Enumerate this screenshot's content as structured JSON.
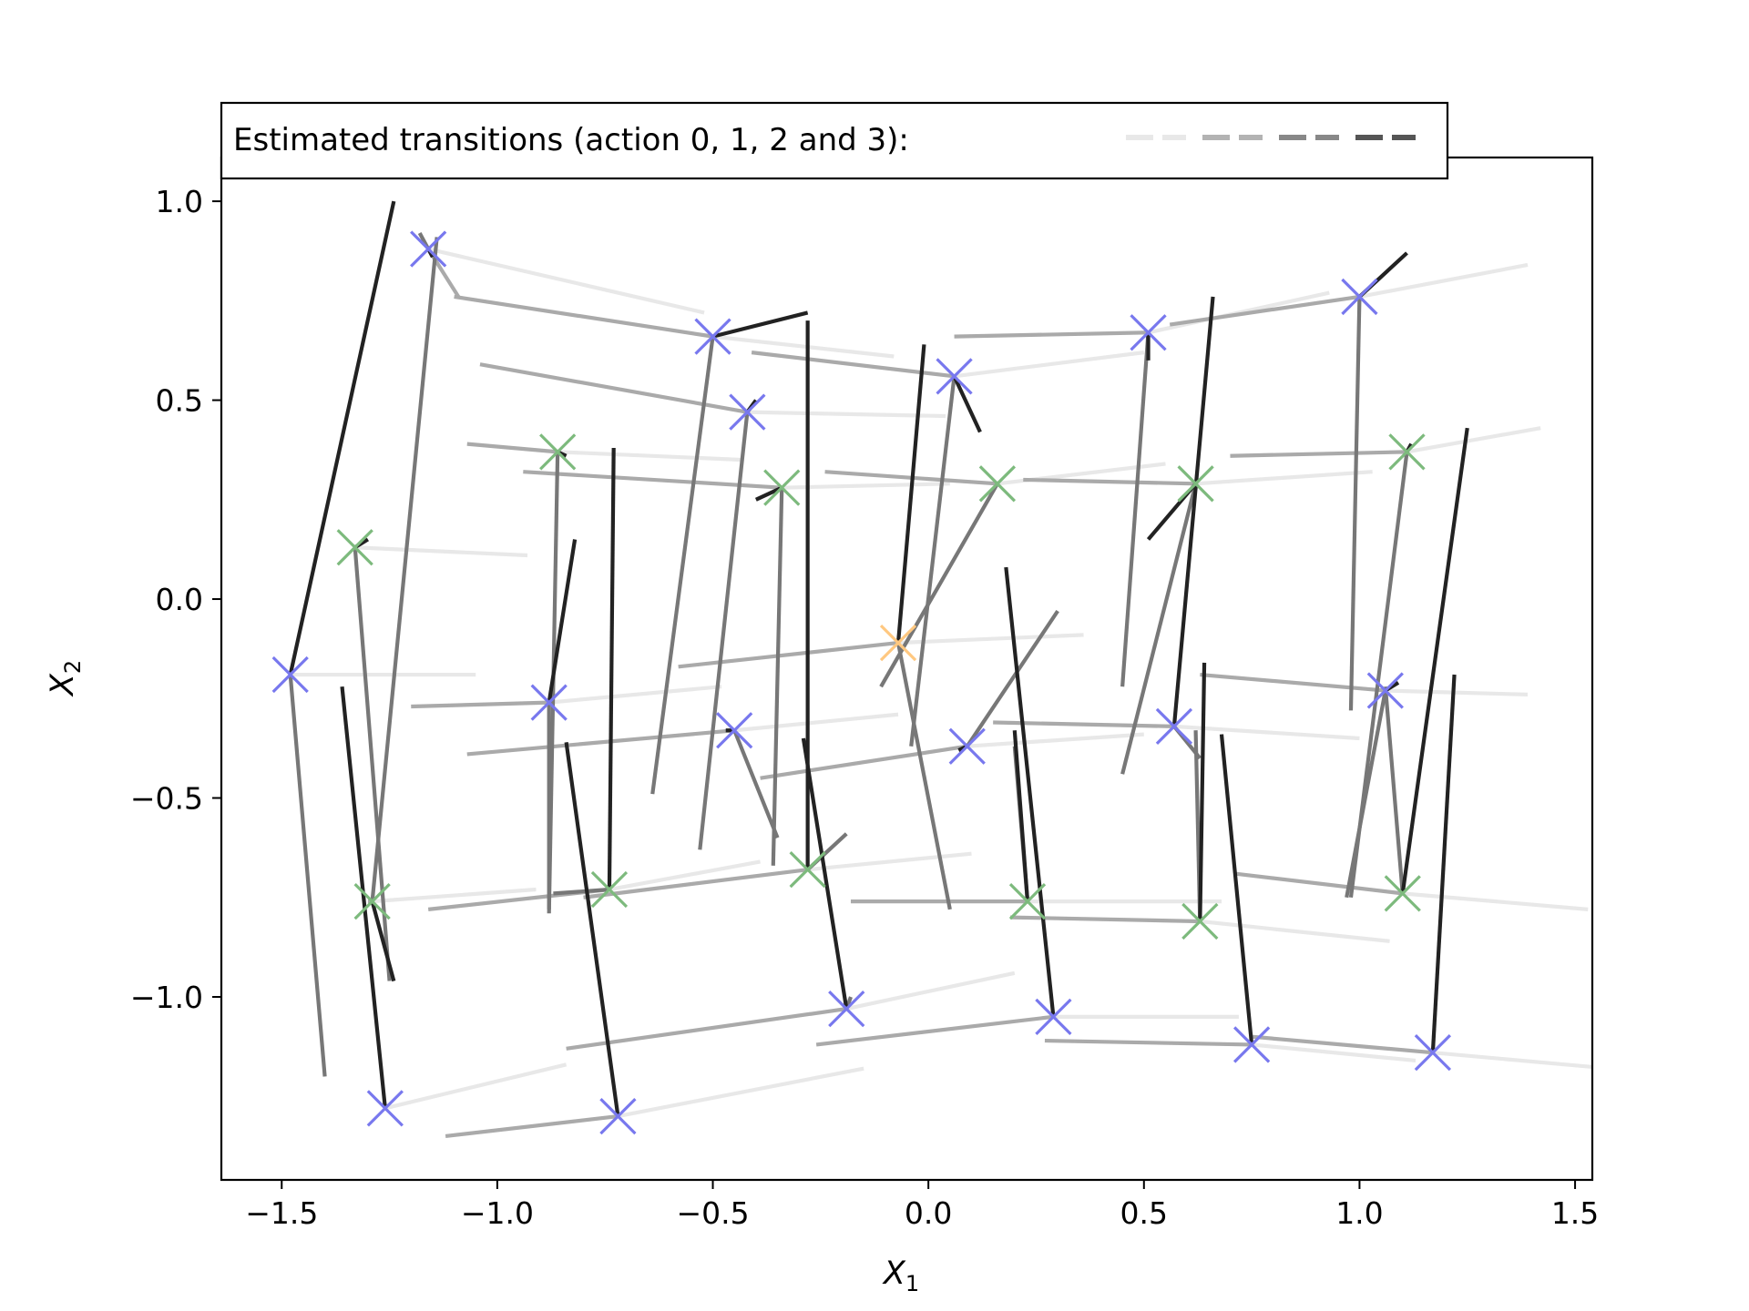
{
  "chart_data": {
    "type": "scatter",
    "title": "",
    "xlabel": "X",
    "xlabel_sub": "1",
    "ylabel": "X",
    "ylabel_sub": "2",
    "xlim": [
      -1.64,
      1.54
    ],
    "ylim": [
      -1.46,
      1.11
    ],
    "xticks": [
      -1.5,
      -1.0,
      -0.5,
      0.0,
      0.5,
      1.0,
      1.5
    ],
    "xtick_labels": [
      "−1.5",
      "−1.0",
      "−0.5",
      "0.0",
      "0.5",
      "1.0",
      "1.5"
    ],
    "yticks": [
      1.0,
      0.5,
      0.0,
      -0.5,
      -1.0
    ],
    "ytick_labels": [
      "1.0",
      "0.5",
      "0.0",
      "−0.5",
      "−1.0"
    ],
    "grid": false,
    "legend": {
      "placement": "top-left, above axes",
      "text": "Estimated transitions (action 0, 1, 2 and 3):",
      "colors": [
        "#e8e8e8",
        "#b3b3b3",
        "#888888",
        "#555555"
      ]
    },
    "action_colors": [
      "#e8e8e8",
      "#aaaaaa",
      "#777777",
      "#222222"
    ],
    "marker_colors": {
      "blue": "#7878ee",
      "green": "#7dba7d",
      "orange": "#ffc880"
    },
    "states": [
      {
        "x": -1.16,
        "y": 0.88,
        "c": "blue",
        "a": [
          [
            -0.52,
            0.72
          ],
          [
            -1.09,
            0.76
          ],
          [
            -1.18,
            0.92
          ],
          [
            -1.15,
            0.86
          ]
        ]
      },
      {
        "x": -0.5,
        "y": 0.66,
        "c": "blue",
        "a": [
          [
            -0.08,
            0.61
          ],
          [
            -1.1,
            0.76
          ],
          [
            -0.64,
            -0.49
          ],
          [
            -0.28,
            0.72
          ]
        ]
      },
      {
        "x": 0.06,
        "y": 0.56,
        "c": "blue",
        "a": [
          [
            0.5,
            0.62
          ],
          [
            -0.41,
            0.62
          ],
          [
            -0.04,
            -0.37
          ],
          [
            0.12,
            0.42
          ]
        ]
      },
      {
        "x": 0.51,
        "y": 0.67,
        "c": "blue",
        "a": [
          [
            0.93,
            0.77
          ],
          [
            0.06,
            0.66
          ],
          [
            0.45,
            -0.22
          ],
          [
            0.51,
            0.6
          ]
        ]
      },
      {
        "x": 1.0,
        "y": 0.76,
        "c": "blue",
        "a": [
          [
            1.39,
            0.84
          ],
          [
            0.56,
            0.69
          ],
          [
            0.98,
            -0.28
          ],
          [
            1.11,
            0.87
          ]
        ]
      },
      {
        "x": -0.42,
        "y": 0.47,
        "c": "blue",
        "a": [
          [
            0.04,
            0.46
          ],
          [
            -1.04,
            0.59
          ],
          [
            -0.53,
            -0.63
          ],
          [
            -0.4,
            0.5
          ]
        ]
      },
      {
        "x": -0.86,
        "y": 0.37,
        "c": "green",
        "a": [
          [
            -0.43,
            0.35
          ],
          [
            -1.07,
            0.39
          ],
          [
            -0.88,
            -0.79
          ],
          [
            -0.84,
            0.36
          ]
        ]
      },
      {
        "x": -0.34,
        "y": 0.28,
        "c": "green",
        "a": [
          [
            0.05,
            0.29
          ],
          [
            -0.94,
            0.32
          ],
          [
            -0.36,
            -0.67
          ],
          [
            -0.4,
            0.25
          ]
        ]
      },
      {
        "x": 0.16,
        "y": 0.29,
        "c": "green",
        "a": [
          [
            0.55,
            0.34
          ],
          [
            -0.24,
            0.32
          ],
          [
            -0.11,
            -0.22
          ],
          [
            0.16,
            0.29
          ]
        ]
      },
      {
        "x": 0.62,
        "y": 0.29,
        "c": "green",
        "a": [
          [
            1.03,
            0.32
          ],
          [
            0.22,
            0.3
          ],
          [
            0.45,
            -0.44
          ],
          [
            0.51,
            0.15
          ]
        ]
      },
      {
        "x": 1.11,
        "y": 0.37,
        "c": "green",
        "a": [
          [
            1.42,
            0.43
          ],
          [
            0.7,
            0.36
          ],
          [
            0.98,
            -0.75
          ],
          [
            1.12,
            0.39
          ]
        ]
      },
      {
        "x": -1.33,
        "y": 0.13,
        "c": "green",
        "a": [
          [
            -0.93,
            0.11
          ],
          [
            -1.33,
            0.13
          ],
          [
            -1.25,
            -0.96
          ],
          [
            -1.3,
            0.15
          ]
        ]
      },
      {
        "x": -1.48,
        "y": -0.19,
        "c": "blue",
        "a": [
          [
            -1.05,
            -0.19
          ],
          [
            -1.48,
            -0.19
          ],
          [
            -1.4,
            -1.2
          ],
          [
            -1.24,
            1.0
          ]
        ]
      },
      {
        "x": -0.88,
        "y": -0.26,
        "c": "blue",
        "a": [
          [
            -0.48,
            -0.22
          ],
          [
            -1.2,
            -0.27
          ],
          [
            -0.88,
            -0.78
          ],
          [
            -0.82,
            0.15
          ]
        ]
      },
      {
        "x": -0.45,
        "y": -0.33,
        "c": "blue",
        "a": [
          [
            -0.07,
            -0.29
          ],
          [
            -1.07,
            -0.39
          ],
          [
            -0.35,
            -0.6
          ],
          [
            -0.47,
            -0.33
          ]
        ]
      },
      {
        "x": -0.07,
        "y": -0.11,
        "c": "orange",
        "a": [
          [
            0.36,
            -0.09
          ],
          [
            -0.58,
            -0.17
          ],
          [
            0.05,
            -0.78
          ],
          [
            -0.01,
            0.64
          ]
        ]
      },
      {
        "x": 0.09,
        "y": -0.37,
        "c": "blue",
        "a": [
          [
            0.5,
            -0.34
          ],
          [
            -0.39,
            -0.45
          ],
          [
            0.3,
            -0.03
          ],
          [
            0.07,
            -0.38
          ]
        ]
      },
      {
        "x": 0.57,
        "y": -0.32,
        "c": "blue",
        "a": [
          [
            1.0,
            -0.35
          ],
          [
            0.15,
            -0.31
          ],
          [
            0.63,
            -0.4
          ],
          [
            0.66,
            0.76
          ]
        ]
      },
      {
        "x": 1.06,
        "y": -0.23,
        "c": "blue",
        "a": [
          [
            1.39,
            -0.24
          ],
          [
            0.63,
            -0.19
          ],
          [
            0.97,
            -0.75
          ],
          [
            1.09,
            -0.21
          ]
        ]
      },
      {
        "x": -1.29,
        "y": -0.76,
        "c": "green",
        "a": [
          [
            -0.91,
            -0.73
          ],
          [
            -1.3,
            -0.76
          ],
          [
            -1.14,
            0.91
          ],
          [
            -1.24,
            -0.96
          ]
        ]
      },
      {
        "x": -0.74,
        "y": -0.73,
        "c": "green",
        "a": [
          [
            -0.39,
            -0.66
          ],
          [
            -1.16,
            -0.78
          ],
          [
            -0.87,
            -0.74
          ],
          [
            -0.73,
            0.38
          ]
        ]
      },
      {
        "x": -0.28,
        "y": -0.68,
        "c": "green",
        "a": [
          [
            0.1,
            -0.64
          ],
          [
            -0.8,
            -0.75
          ],
          [
            -0.19,
            -0.59
          ],
          [
            -0.28,
            0.7
          ]
        ]
      },
      {
        "x": 0.23,
        "y": -0.76,
        "c": "green",
        "a": [
          [
            0.68,
            -0.76
          ],
          [
            -0.18,
            -0.76
          ],
          [
            0.2,
            -0.37
          ],
          [
            0.2,
            -0.33
          ]
        ]
      },
      {
        "x": 0.63,
        "y": -0.81,
        "c": "green",
        "a": [
          [
            1.07,
            -0.86
          ],
          [
            0.19,
            -0.8
          ],
          [
            0.62,
            -0.33
          ],
          [
            0.64,
            -0.16
          ]
        ]
      },
      {
        "x": 1.1,
        "y": -0.74,
        "c": "green",
        "a": [
          [
            1.53,
            -0.78
          ],
          [
            0.71,
            -0.69
          ],
          [
            1.06,
            -0.22
          ],
          [
            1.25,
            0.43
          ]
        ]
      },
      {
        "x": -0.19,
        "y": -1.03,
        "c": "blue",
        "a": [
          [
            0.2,
            -0.94
          ],
          [
            -0.84,
            -1.13
          ],
          [
            -0.18,
            -1.0
          ],
          [
            -0.29,
            -0.35
          ]
        ]
      },
      {
        "x": 0.29,
        "y": -1.05,
        "c": "blue",
        "a": [
          [
            0.72,
            -1.05
          ],
          [
            -0.26,
            -1.12
          ],
          [
            0.29,
            -1.05
          ],
          [
            0.18,
            0.08
          ]
        ]
      },
      {
        "x": 0.75,
        "y": -1.12,
        "c": "blue",
        "a": [
          [
            1.13,
            -1.16
          ],
          [
            0.27,
            -1.11
          ],
          [
            0.75,
            -1.12
          ],
          [
            0.68,
            -0.34
          ]
        ]
      },
      {
        "x": 1.17,
        "y": -1.14,
        "c": "blue",
        "a": [
          [
            1.58,
            -1.18
          ],
          [
            0.75,
            -1.1
          ],
          [
            1.17,
            -1.14
          ],
          [
            1.22,
            -0.19
          ]
        ]
      },
      {
        "x": -1.26,
        "y": -1.28,
        "c": "blue",
        "a": [
          [
            -0.84,
            -1.17
          ],
          [
            -1.26,
            -1.28
          ],
          [
            -1.26,
            -1.28
          ],
          [
            -1.36,
            -0.22
          ]
        ]
      },
      {
        "x": -0.72,
        "y": -1.3,
        "c": "blue",
        "a": [
          [
            -0.15,
            -1.18
          ],
          [
            -1.12,
            -1.35
          ],
          [
            -0.72,
            -1.3
          ],
          [
            -0.84,
            -0.36
          ]
        ]
      }
    ]
  }
}
